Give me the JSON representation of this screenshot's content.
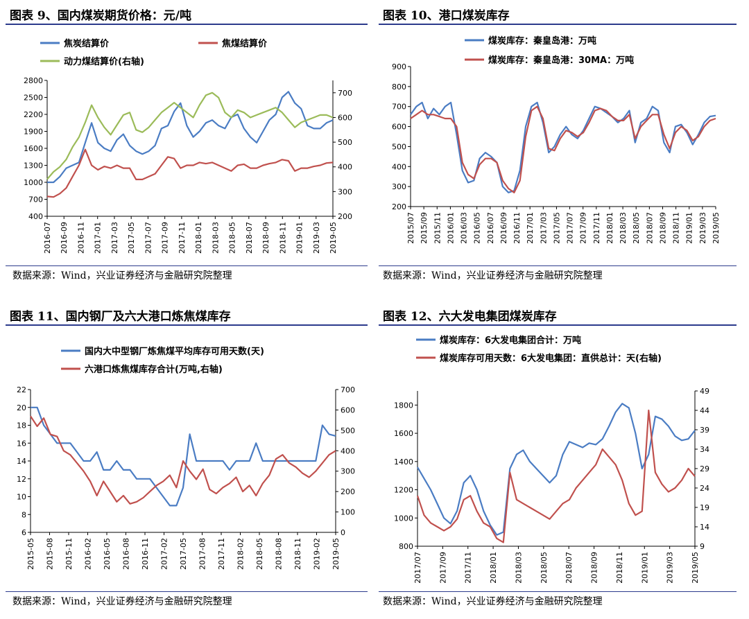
{
  "source_text": "数据来源：Wind，兴业证券经济与金融研究院整理",
  "colors": {
    "blue": "#4a7cc3",
    "red": "#c0504d",
    "green": "#9bbb59",
    "rule": "#2b3a8c"
  },
  "charts": [
    {
      "title": "图表 9、国内煤炭期货价格：元/吨",
      "legend": [
        "焦炭结算价",
        "焦煤结算价",
        "动力煤结算价(右轴)"
      ],
      "chart_data": {
        "type": "line",
        "x_ticks": [
          "2016-07",
          "2016-09",
          "2016-11",
          "2017-01",
          "2017-03",
          "2017-05",
          "2017-07",
          "2017-09",
          "2017-11",
          "2018-01",
          "2018-03",
          "2018-05",
          "2018-07",
          "2018-09",
          "2018-11",
          "2019-01",
          "2019-03",
          "2019-05"
        ],
        "y_left": {
          "ticks": [
            400,
            700,
            1000,
            1300,
            1600,
            1900,
            2200,
            2500,
            2800
          ],
          "range": [
            400,
            2800
          ]
        },
        "y_right": {
          "ticks": [
            200,
            300,
            400,
            500,
            600,
            700
          ],
          "range": [
            200,
            750
          ]
        },
        "series": [
          {
            "name": "焦炭结算价",
            "axis": "left",
            "color": "#4a7cc3",
            "values": [
              1000,
              1000,
              1100,
              1250,
              1300,
              1350,
              1700,
              2050,
              1700,
              1600,
              1550,
              1750,
              1850,
              1650,
              1550,
              1500,
              1550,
              1650,
              1950,
              2000,
              2250,
              2400,
              2000,
              1800,
              1900,
              2050,
              2100,
              2000,
              1950,
              2150,
              2200,
              1950,
              1800,
              1700,
              1900,
              2100,
              2200,
              2500,
              2600,
              2400,
              2300,
              2000,
              1950,
              1950,
              2050,
              2100
            ]
          },
          {
            "name": "焦煤结算价",
            "axis": "left",
            "color": "#c0504d",
            "values": [
              750,
              740,
              800,
              900,
              1100,
              1300,
              1580,
              1300,
              1220,
              1280,
              1250,
              1300,
              1250,
              1250,
              1050,
              1050,
              1100,
              1150,
              1300,
              1450,
              1420,
              1250,
              1300,
              1300,
              1350,
              1330,
              1350,
              1300,
              1250,
              1200,
              1300,
              1320,
              1250,
              1250,
              1300,
              1330,
              1350,
              1400,
              1380,
              1200,
              1250,
              1250,
              1280,
              1300,
              1340,
              1350
            ]
          },
          {
            "name": "动力煤结算价(右轴)",
            "axis": "right",
            "color": "#9bbb59",
            "values": [
              350,
              380,
              400,
              430,
              480,
              520,
              580,
              650,
              600,
              560,
              530,
              570,
              610,
              620,
              550,
              540,
              560,
              590,
              620,
              640,
              660,
              640,
              620,
              600,
              650,
              690,
              700,
              680,
              620,
              600,
              630,
              620,
              600,
              610,
              620,
              630,
              640,
              620,
              590,
              560,
              580,
              590,
              600,
              610,
              610,
              600
            ]
          }
        ]
      }
    },
    {
      "title": "图表 10、港口煤炭库存",
      "legend": [
        "煤炭库存：秦皇岛港：万吨",
        "煤炭库存：秦皇岛港：30MA：万吨"
      ],
      "chart_data": {
        "type": "line",
        "x_ticks": [
          "2015/07",
          "2015/09",
          "2015/11",
          "2016/01",
          "2016/03",
          "2016/05",
          "2016/07",
          "2016/09",
          "2016/11",
          "2017/01",
          "2017/03",
          "2017/05",
          "2017/07",
          "2017/09",
          "2017/11",
          "2018/01",
          "2018/03",
          "2018/05",
          "2018/07",
          "2018/09",
          "2018/11",
          "2019/01",
          "2019/03",
          "2019/05"
        ],
        "y_left": {
          "ticks": [
            200,
            300,
            400,
            500,
            600,
            700,
            800,
            900
          ],
          "range": [
            200,
            900
          ]
        },
        "series": [
          {
            "name": "煤炭库存：秦皇岛港：万吨",
            "color": "#4a7cc3",
            "values": [
              660,
              700,
              720,
              640,
              690,
              660,
              700,
              720,
              560,
              380,
              320,
              330,
              440,
              470,
              450,
              420,
              300,
              270,
              280,
              380,
              600,
              700,
              720,
              620,
              470,
              500,
              560,
              600,
              560,
              540,
              580,
              640,
              700,
              690,
              670,
              650,
              620,
              640,
              680,
              520,
              620,
              640,
              700,
              680,
              520,
              470,
              600,
              610,
              570,
              510,
              560,
              620,
              650,
              655
            ]
          },
          {
            "name": "煤炭库存：秦皇岛港：30MA：万吨",
            "color": "#c0504d",
            "values": [
              640,
              660,
              680,
              660,
              660,
              650,
              640,
              640,
              600,
              420,
              360,
              340,
              410,
              440,
              440,
              420,
              330,
              290,
              270,
              330,
              550,
              680,
              700,
              640,
              490,
              480,
              540,
              580,
              570,
              550,
              570,
              620,
              680,
              690,
              680,
              650,
              630,
              630,
              660,
              540,
              600,
              630,
              660,
              660,
              560,
              490,
              570,
              600,
              580,
              530,
              550,
              600,
              630,
              640
            ]
          }
        ]
      }
    },
    {
      "title": "图表 11、国内钢厂及六大港口炼焦煤库存",
      "legend": [
        "国内大中型钢厂炼焦煤平均库存可用天数(天)",
        "六港口炼焦煤库存合计(万吨,右轴)"
      ],
      "chart_data": {
        "type": "line",
        "x_ticks": [
          "2015-05",
          "2015-08",
          "2015-11",
          "2016-02",
          "2016-05",
          "2016-08",
          "2016-11",
          "2017-02",
          "2017-05",
          "2017-08",
          "2017-11",
          "2018-02",
          "2018-05",
          "2018-08",
          "2018-11",
          "2019-02",
          "2019-05"
        ],
        "y_left": {
          "ticks": [
            6,
            8,
            10,
            12,
            14,
            16,
            18,
            20,
            22
          ],
          "range": [
            6,
            22
          ]
        },
        "y_right": {
          "ticks": [
            0,
            100,
            200,
            300,
            400,
            500,
            600,
            700
          ],
          "range": [
            0,
            700
          ]
        },
        "series": [
          {
            "name": "国内大中型钢厂炼焦煤平均库存可用天数(天)",
            "axis": "left",
            "color": "#4a7cc3",
            "values": [
              20,
              20,
              18,
              17,
              16,
              16,
              16,
              15,
              14,
              14,
              15,
              13,
              13,
              14,
              13,
              13,
              12,
              12,
              12,
              11,
              10,
              9,
              9,
              11,
              17,
              14,
              14,
              14,
              14,
              14,
              13,
              14,
              14,
              14,
              16,
              14,
              14,
              14,
              14,
              14,
              14,
              14,
              14,
              14,
              18,
              17,
              16.8
            ]
          },
          {
            "name": "六港口炼焦煤库存合计(万吨,右轴)",
            "axis": "right",
            "color": "#c0504d",
            "values": [
              570,
              520,
              560,
              480,
              470,
              400,
              380,
              340,
              300,
              250,
              180,
              250,
              200,
              150,
              180,
              140,
              150,
              170,
              200,
              230,
              250,
              280,
              220,
              350,
              300,
              260,
              310,
              210,
              190,
              220,
              240,
              270,
              200,
              230,
              180,
              240,
              280,
              360,
              380,
              340,
              320,
              290,
              270,
              300,
              340,
              380,
              400
            ]
          }
        ]
      }
    },
    {
      "title": "图表 12、六大发电集团煤炭库存",
      "legend": [
        "煤炭库存：6大发电集团合计：万吨",
        "煤炭库存可用天数：6大发电集团：直供总计：天(右轴)"
      ],
      "chart_data": {
        "type": "line",
        "x_ticks": [
          "2017/07",
          "2017/09",
          "2017/11",
          "2018/01",
          "2018/03",
          "2018/05",
          "2018/07",
          "2018/09",
          "2018/11",
          "2019/01",
          "2019/03",
          "2019/05"
        ],
        "y_left": {
          "ticks": [
            800,
            1000,
            1200,
            1400,
            1600,
            1800
          ],
          "range": [
            800,
            1900
          ]
        },
        "y_right": {
          "ticks": [
            9,
            14,
            19,
            24,
            29,
            34,
            39,
            44,
            49
          ],
          "range": [
            9,
            49
          ]
        },
        "series": [
          {
            "name": "煤炭库存：6大发电集团合计：万吨",
            "axis": "left",
            "color": "#4a7cc3",
            "values": [
              1360,
              1280,
              1200,
              1100,
              1000,
              960,
              1050,
              1250,
              1300,
              1200,
              1050,
              950,
              880,
              900,
              1350,
              1450,
              1480,
              1400,
              1350,
              1300,
              1250,
              1300,
              1450,
              1540,
              1520,
              1500,
              1530,
              1520,
              1560,
              1650,
              1750,
              1810,
              1780,
              1600,
              1350,
              1450,
              1720,
              1700,
              1650,
              1580,
              1550,
              1560,
              1620
            ]
          },
          {
            "name": "煤炭库存可用天数：6大发电集团：直供总计：天(右轴)",
            "axis": "right",
            "color": "#c0504d",
            "values": [
              22,
              17,
              15,
              14,
              13,
              14,
              16,
              21,
              22,
              18,
              15,
              14,
              11,
              10,
              28,
              21,
              20,
              19,
              18,
              17,
              16,
              18,
              20,
              21,
              24,
              26,
              28,
              30,
              34,
              32,
              30,
              26,
              20,
              17,
              18,
              44,
              28,
              25,
              23,
              24,
              26,
              29,
              27
            ]
          }
        ]
      }
    }
  ]
}
